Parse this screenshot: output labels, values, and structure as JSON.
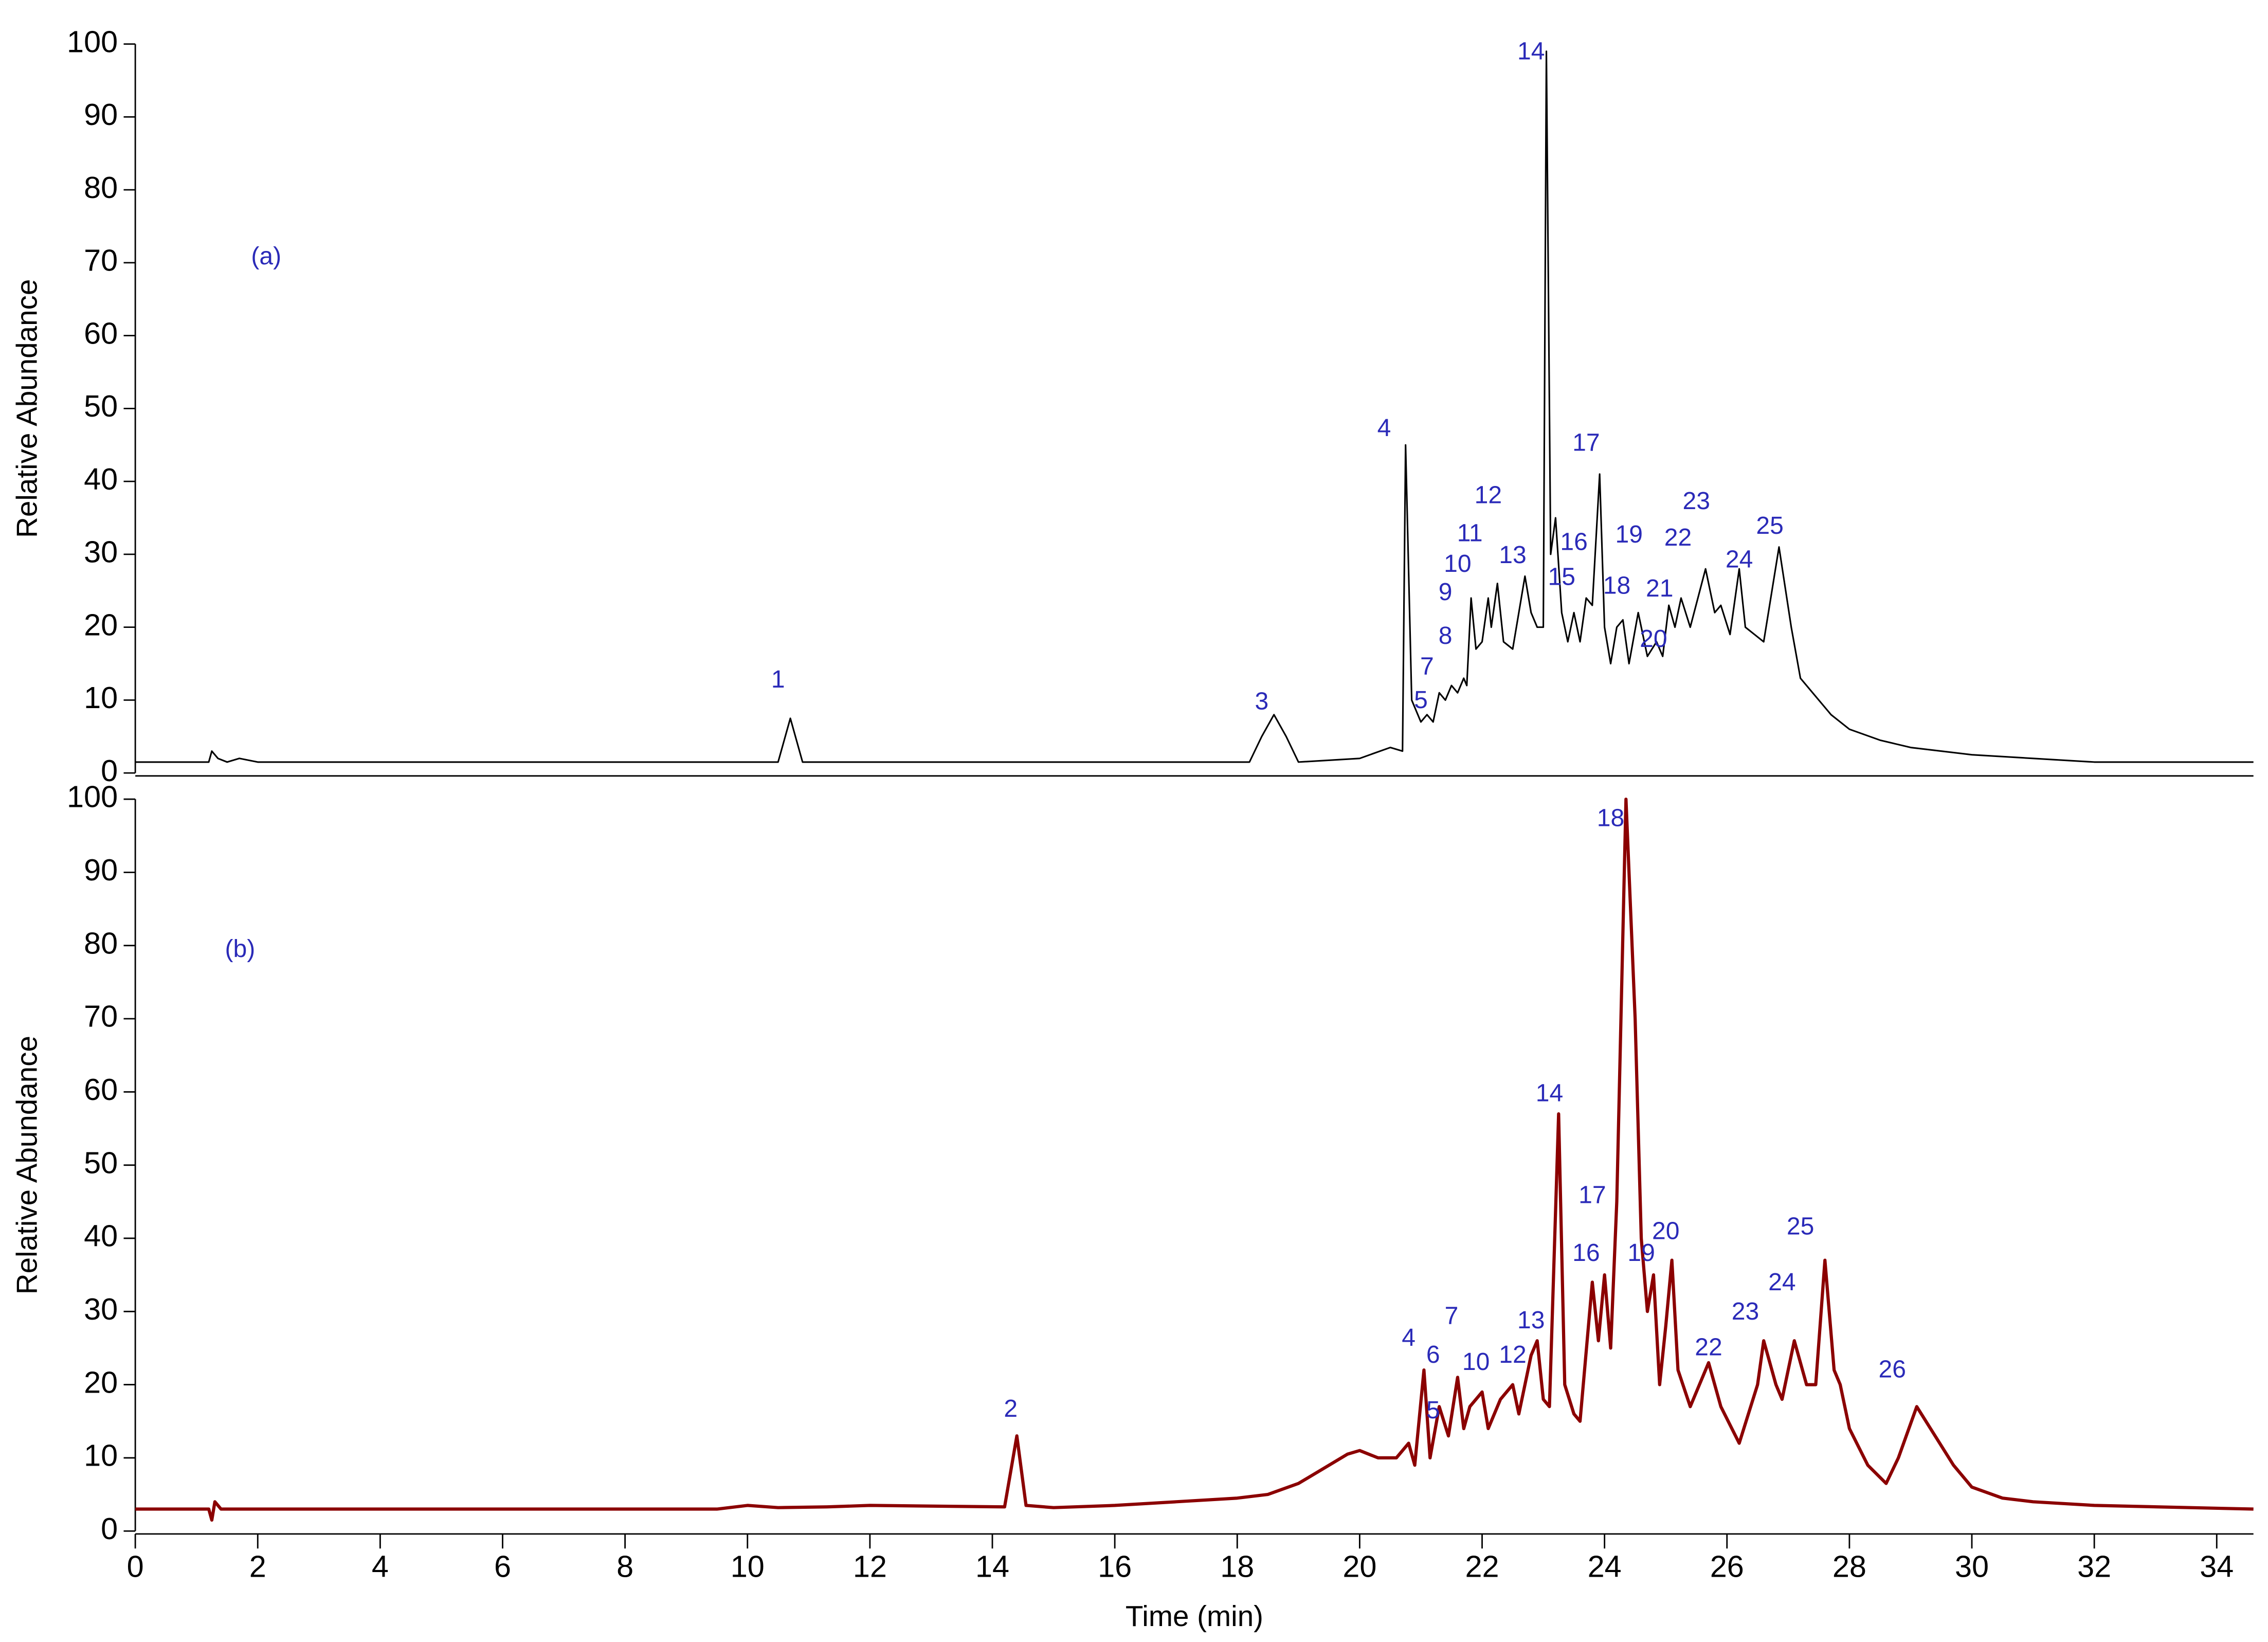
{
  "chart_data": [
    {
      "type": "line",
      "label": "(a)",
      "ylabel": "Relative Abundance",
      "color": "#000000",
      "xlim": [
        0,
        34.6
      ],
      "ylim": [
        0,
        100
      ],
      "yticks": [
        0,
        10,
        20,
        30,
        40,
        50,
        60,
        70,
        80,
        90,
        100
      ],
      "x": [
        0,
        1.2,
        1.25,
        1.35,
        1.5,
        1.7,
        2,
        9,
        10.5,
        10.7,
        10.9,
        18.2,
        18.4,
        18.6,
        18.8,
        19,
        20,
        20.5,
        20.7,
        20.75,
        20.85,
        21,
        21.1,
        21.2,
        21.3,
        21.4,
        21.5,
        21.6,
        21.7,
        21.75,
        21.82,
        21.9,
        22,
        22.1,
        22.15,
        22.25,
        22.35,
        22.5,
        22.6,
        22.7,
        22.8,
        22.9,
        23.0,
        23.05,
        23.12,
        23.2,
        23.3,
        23.4,
        23.5,
        23.6,
        23.7,
        23.8,
        23.92,
        24.0,
        24.1,
        24.2,
        24.3,
        24.4,
        24.55,
        24.7,
        24.85,
        24.95,
        25.05,
        25.15,
        25.25,
        25.4,
        25.65,
        25.8,
        25.9,
        26.05,
        26.2,
        26.3,
        26.45,
        26.6,
        26.85,
        27.05,
        27.2,
        27.4,
        27.7,
        28,
        28.5,
        29,
        30,
        31,
        32,
        34.6
      ],
      "values": [
        1.5,
        1.5,
        3,
        2,
        1.5,
        2,
        1.5,
        1.5,
        1.5,
        7.5,
        1.5,
        1.5,
        5,
        8,
        5,
        1.5,
        2,
        3.5,
        3,
        45,
        10,
        7,
        8,
        7,
        11,
        10,
        12,
        11,
        13,
        12,
        24,
        17,
        18,
        24,
        20,
        26,
        18,
        17,
        22,
        27,
        22,
        20,
        20,
        99,
        30,
        35,
        22,
        18,
        22,
        18,
        24,
        23,
        41,
        20,
        15,
        20,
        21,
        15,
        22,
        16,
        18,
        16,
        23,
        20,
        24,
        20,
        28,
        22,
        23,
        19,
        28,
        20,
        19,
        18,
        31,
        20,
        13,
        11,
        8,
        6,
        4.5,
        3.5,
        2.5,
        2,
        1.5,
        1.5
      ],
      "annotations": [
        {
          "text": "1",
          "x": 10.5,
          "y": 12.6
        },
        {
          "text": "3",
          "x": 18.4,
          "y": 9.6
        },
        {
          "text": "4",
          "x": 20.4,
          "y": 47.1
        },
        {
          "text": "5",
          "x": 21.0,
          "y": 9.8
        },
        {
          "text": "7",
          "x": 21.1,
          "y": 14.4
        },
        {
          "text": "8",
          "x": 21.4,
          "y": 18.6
        },
        {
          "text": "9",
          "x": 21.4,
          "y": 24.6
        },
        {
          "text": "10",
          "x": 21.6,
          "y": 28.5
        },
        {
          "text": "11",
          "x": 21.8,
          "y": 32.7
        },
        {
          "text": "12",
          "x": 22.1,
          "y": 37.9
        },
        {
          "text": "13",
          "x": 22.5,
          "y": 29.7
        },
        {
          "text": "14",
          "x": 22.8,
          "y": 98.8
        },
        {
          "text": "15",
          "x": 23.3,
          "y": 26.7
        },
        {
          "text": "16",
          "x": 23.5,
          "y": 31.5
        },
        {
          "text": "17",
          "x": 23.7,
          "y": 45.1
        },
        {
          "text": "18",
          "x": 24.2,
          "y": 25.5
        },
        {
          "text": "19",
          "x": 24.4,
          "y": 32.5
        },
        {
          "text": "20",
          "x": 24.8,
          "y": 18.2
        },
        {
          "text": "21",
          "x": 24.9,
          "y": 25.1
        },
        {
          "text": "22",
          "x": 25.2,
          "y": 32.1
        },
        {
          "text": "23",
          "x": 25.5,
          "y": 37.1
        },
        {
          "text": "24",
          "x": 26.2,
          "y": 29.1
        },
        {
          "text": "25",
          "x": 26.7,
          "y": 33.7
        }
      ]
    },
    {
      "type": "line",
      "label": "(b)",
      "ylabel": "Relative Abundance",
      "xlabel": "Time (min)",
      "color": "#8b0000",
      "xlim": [
        0,
        34.6
      ],
      "ylim": [
        0,
        100
      ],
      "yticks": [
        0,
        10,
        20,
        30,
        40,
        50,
        60,
        70,
        80,
        90,
        100
      ],
      "xticks": [
        0,
        2,
        4,
        6,
        8,
        10,
        12,
        14,
        16,
        18,
        20,
        22,
        24,
        26,
        28,
        30,
        32,
        34
      ],
      "x": [
        0,
        1.2,
        1.25,
        1.3,
        1.4,
        9.5,
        10,
        10.5,
        11.3,
        12,
        14.2,
        14.4,
        14.55,
        15,
        16,
        17,
        18,
        18.5,
        19,
        19.5,
        19.8,
        20,
        20.3,
        20.6,
        20.8,
        20.9,
        21.05,
        21.15,
        21.3,
        21.45,
        21.6,
        21.7,
        21.8,
        22,
        22.1,
        22.3,
        22.5,
        22.6,
        22.8,
        22.9,
        23.0,
        23.1,
        23.25,
        23.35,
        23.5,
        23.6,
        23.8,
        23.9,
        24.0,
        24.1,
        24.2,
        24.35,
        24.5,
        24.6,
        24.7,
        24.8,
        24.9,
        25.0,
        25.1,
        25.2,
        25.4,
        25.7,
        25.9,
        26.2,
        26.5,
        26.6,
        26.8,
        26.9,
        27.1,
        27.3,
        27.45,
        27.6,
        27.75,
        27.85,
        28,
        28.3,
        28.6,
        28.8,
        29.1,
        29.4,
        29.7,
        30,
        30.5,
        31,
        32,
        34.6
      ],
      "values": [
        3,
        3,
        1.5,
        4,
        3,
        3,
        3.5,
        3.2,
        3.3,
        3.5,
        3.3,
        13,
        3.5,
        3.2,
        3.5,
        4,
        4.5,
        5,
        6.5,
        9,
        10.5,
        11,
        10,
        10,
        12,
        9,
        22,
        10,
        17,
        13,
        21,
        14,
        17,
        19,
        14,
        18,
        20,
        16,
        24,
        26,
        18,
        17,
        57,
        20,
        16,
        15,
        34,
        26,
        35,
        25,
        45,
        100,
        70,
        40,
        30,
        35,
        20,
        28,
        37,
        22,
        17,
        23,
        17,
        12,
        20,
        26,
        20,
        18,
        26,
        20,
        20,
        37,
        22,
        20,
        14,
        9,
        6.5,
        10,
        17,
        13,
        9,
        6,
        4.5,
        4,
        3.5,
        3
      ],
      "annotations": [
        {
          "text": "2",
          "x": 14.3,
          "y": 16.5
        },
        {
          "text": "4",
          "x": 20.8,
          "y": 26.2
        },
        {
          "text": "5",
          "x": 21.2,
          "y": 16.3
        },
        {
          "text": "6",
          "x": 21.2,
          "y": 23.9
        },
        {
          "text": "7",
          "x": 21.5,
          "y": 29.2
        },
        {
          "text": "10",
          "x": 21.9,
          "y": 22.9
        },
        {
          "text": "12",
          "x": 22.5,
          "y": 23.9
        },
        {
          "text": "13",
          "x": 22.8,
          "y": 28.6
        },
        {
          "text": "14",
          "x": 23.1,
          "y": 59.6
        },
        {
          "text": "16",
          "x": 23.7,
          "y": 37.8
        },
        {
          "text": "17",
          "x": 23.8,
          "y": 45.7
        },
        {
          "text": "18",
          "x": 24.1,
          "y": 97.2
        },
        {
          "text": "19",
          "x": 24.6,
          "y": 37.8
        },
        {
          "text": "20",
          "x": 25.0,
          "y": 40.8
        },
        {
          "text": "22",
          "x": 25.7,
          "y": 24.9
        },
        {
          "text": "23",
          "x": 26.3,
          "y": 29.8
        },
        {
          "text": "24",
          "x": 26.9,
          "y": 33.8
        },
        {
          "text": "25",
          "x": 27.2,
          "y": 41.4
        },
        {
          "text": "26",
          "x": 28.7,
          "y": 21.9
        }
      ]
    }
  ]
}
